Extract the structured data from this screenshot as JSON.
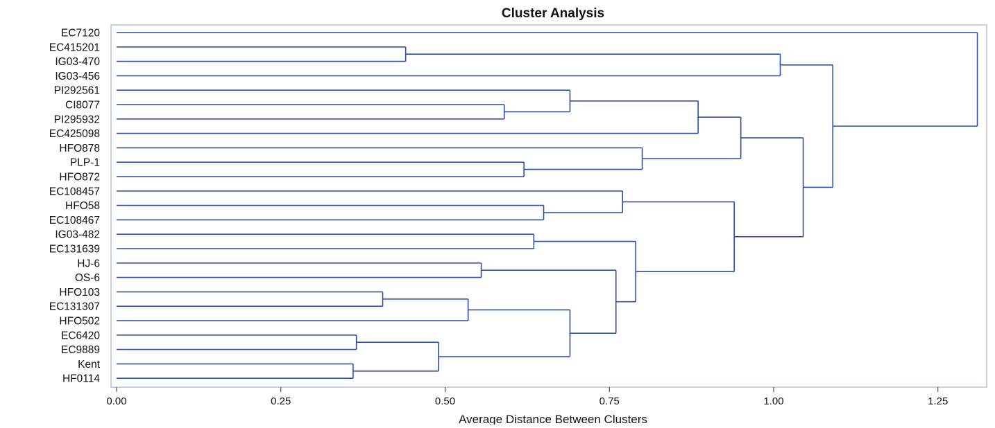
{
  "chart_data": {
    "type": "dendrogram",
    "title": "Cluster Analysis",
    "xlabel": "Average Distance Between Clusters",
    "xlim": [
      0,
      1.32
    ],
    "xticks": [
      "0.00",
      "0.25",
      "0.50",
      "0.75",
      "1.00",
      "1.25"
    ],
    "leaves": [
      "EC7120",
      "EC415201",
      "IG03-470",
      "IG03-456",
      "PI292561",
      "CI8077",
      "PI295932",
      "EC425098",
      "HFO878",
      "PLP-1",
      "HFO872",
      "EC108457",
      "HFO58",
      "EC108467",
      "IG03-482",
      "EC131639",
      "HJ-6",
      "OS-6",
      "HFO103",
      "EC131307",
      "HFO502",
      "EC6420",
      "EC9889",
      "Kent",
      "HF0114"
    ],
    "merges": [
      {
        "a": "L:EC415201",
        "b": "L:IG03-470",
        "height": 0.44
      },
      {
        "a": "L:CI8077",
        "b": "L:PI295932",
        "height": 0.59
      },
      {
        "a": "L:PI292561",
        "b": "M2",
        "height": 0.69
      },
      {
        "a": "M3",
        "b": "L:EC425098",
        "height": 0.885
      },
      {
        "a": "L:PLP-1",
        "b": "L:HFO872",
        "height": 0.62
      },
      {
        "a": "L:HFO878",
        "b": "M5",
        "height": 0.8
      },
      {
        "a": "M4",
        "b": "M6",
        "height": 0.95
      },
      {
        "a": "L:HFO58",
        "b": "L:EC108467",
        "height": 0.65
      },
      {
        "a": "L:EC108457",
        "b": "M8",
        "height": 0.77
      },
      {
        "a": "L:IG03-482",
        "b": "L:EC131639",
        "height": 0.635
      },
      {
        "a": "L:HJ-6",
        "b": "L:OS-6",
        "height": 0.555
      },
      {
        "a": "L:HFO103",
        "b": "L:EC131307",
        "height": 0.405
      },
      {
        "a": "M12",
        "b": "L:HFO502",
        "height": 0.535
      },
      {
        "a": "L:EC6420",
        "b": "L:EC9889",
        "height": 0.365
      },
      {
        "a": "L:Kent",
        "b": "L:HF0114",
        "height": 0.36
      },
      {
        "a": "M14",
        "b": "M15",
        "height": 0.49
      },
      {
        "a": "M13",
        "b": "M16",
        "height": 0.69
      },
      {
        "a": "M11",
        "b": "M17",
        "height": 0.76
      },
      {
        "a": "M10",
        "b": "M18",
        "height": 0.79
      },
      {
        "a": "M9",
        "b": "M19",
        "height": 0.94
      },
      {
        "a": "M7",
        "b": "M20",
        "height": 1.045
      },
      {
        "a": "M1",
        "b": "L:IG03-456",
        "height": 1.01
      },
      {
        "a": "M22",
        "b": "M21",
        "height": 1.09
      },
      {
        "a": "L:EC7120",
        "b": "M23",
        "height": 1.31
      }
    ]
  },
  "colors": {
    "branch": "#2b4fa8",
    "frame": "#b8c2cc",
    "text": "#111111"
  }
}
